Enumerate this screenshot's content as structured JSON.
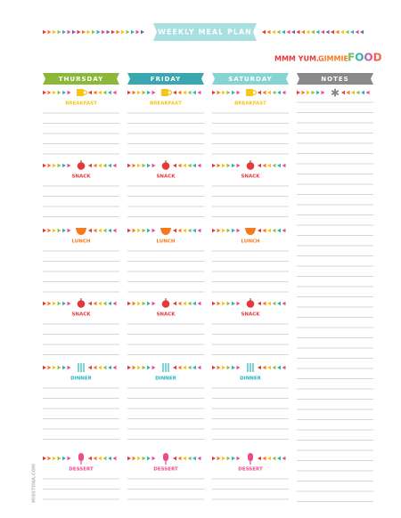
{
  "header": {
    "title": "WEEKLY MEAL PLAN",
    "tagline": [
      "MMM YUM...",
      "GIMMIE",
      "FOOD"
    ]
  },
  "columns": [
    {
      "label": "THURSDAY"
    },
    {
      "label": "FRIDAY"
    },
    {
      "label": "SATURDAY"
    }
  ],
  "notes": {
    "label": "NOTES"
  },
  "meals": [
    {
      "label": "BREAKFAST"
    },
    {
      "label": "SNACK"
    },
    {
      "label": "LUNCH"
    },
    {
      "label": "SNACK"
    },
    {
      "label": "DINNER"
    },
    {
      "label": "DESSERT"
    }
  ],
  "footer": {
    "site": "MISSTIINA.COM"
  }
}
